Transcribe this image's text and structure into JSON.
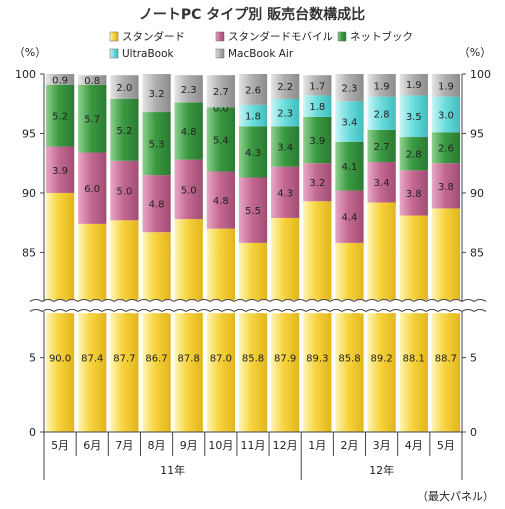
{
  "chart_data": {
    "type": "bar",
    "stacked": true,
    "title": "ノートPC タイプ別 販売台数構成比",
    "y_unit_left": "（%）",
    "y_unit_right": "（%）",
    "y_ticks_upper": [
      100,
      95,
      90,
      85
    ],
    "y_ticks_lower": [
      5,
      0
    ],
    "y_axis_break": true,
    "upper_range": [
      81,
      100
    ],
    "lower_range": [
      0,
      8
    ],
    "categories": [
      "5月",
      "6月",
      "7月",
      "8月",
      "9月",
      "10月",
      "11月",
      "12月",
      "1月",
      "2月",
      "3月",
      "4月",
      "5月"
    ],
    "year_groups": [
      {
        "label": "11年",
        "start": 0,
        "end": 7
      },
      {
        "label": "12年",
        "start": 8,
        "end": 12
      }
    ],
    "series": [
      {
        "name": "スタンダード",
        "color": "#f7d03c",
        "values": [
          90.0,
          87.4,
          87.7,
          86.7,
          87.8,
          87.0,
          85.8,
          87.9,
          89.3,
          85.8,
          89.2,
          88.1,
          88.7
        ]
      },
      {
        "name": "スタンダードモバイル",
        "color": "#c46a92",
        "values": [
          3.9,
          6.0,
          5.0,
          4.8,
          5.0,
          4.8,
          5.5,
          4.3,
          3.2,
          4.4,
          3.4,
          3.8,
          3.8
        ]
      },
      {
        "name": "ネットブック",
        "color": "#3b9a42",
        "values": [
          5.2,
          5.7,
          5.2,
          5.3,
          4.8,
          5.4,
          4.3,
          3.4,
          3.9,
          4.1,
          2.7,
          2.8,
          2.6
        ]
      },
      {
        "name": "UltraBook",
        "color": "#5fd8d8",
        "values": [
          null,
          null,
          null,
          null,
          null,
          0.0,
          1.8,
          2.3,
          1.8,
          3.4,
          2.8,
          3.5,
          3.0
        ]
      },
      {
        "name": "MacBook Air",
        "color": "#a7a7a7",
        "values": [
          0.9,
          0.8,
          2.0,
          3.2,
          2.3,
          2.7,
          2.6,
          2.2,
          1.7,
          2.3,
          1.9,
          1.9,
          1.9
        ]
      }
    ],
    "legend_position": "top",
    "note": "（最大パネル）"
  }
}
